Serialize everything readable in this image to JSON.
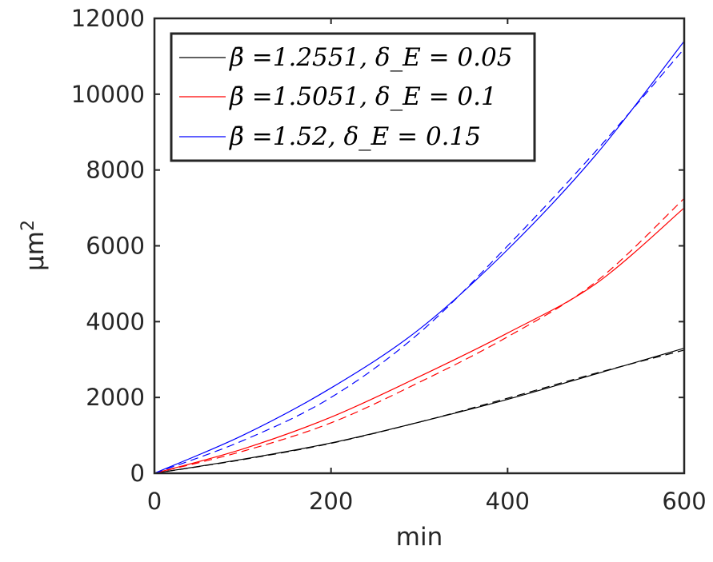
{
  "chart_data": {
    "type": "line",
    "xlabel": "min",
    "ylabel": "μm",
    "ylabel_superscript": "2",
    "xlim": [
      0,
      600
    ],
    "ylim": [
      0,
      12000
    ],
    "xticks": [
      0,
      200,
      400,
      600
    ],
    "xtick_labels": [
      "0",
      "200",
      "400",
      "600"
    ],
    "yticks": [
      0,
      2000,
      4000,
      6000,
      8000,
      10000,
      12000
    ],
    "ytick_labels": [
      "0",
      "2000",
      "4000",
      "6000",
      "8000",
      "10000",
      "12000"
    ],
    "grid": false,
    "legend_position": "top-left",
    "x": [
      0,
      100,
      200,
      300,
      400,
      500,
      600
    ],
    "series": [
      {
        "name": "β̄ =1.2551, δ_E = 0.05",
        "style": "solid",
        "color": "#000000",
        "values": [
          0,
          370,
          800,
          1350,
          1950,
          2620,
          3300
        ]
      },
      {
        "name": "",
        "style": "dashed",
        "color": "#000000",
        "values": [
          0,
          360,
          790,
          1350,
          1980,
          2640,
          3250
        ]
      },
      {
        "name": "β̄ =1.5051, δ_E = 0.1",
        "style": "solid",
        "color": "#ff0000",
        "values": [
          0,
          640,
          1480,
          2550,
          3700,
          5000,
          7000
        ]
      },
      {
        "name": "",
        "style": "dashed",
        "color": "#ff0000",
        "values": [
          0,
          580,
          1330,
          2400,
          3600,
          5050,
          7250
        ]
      },
      {
        "name": "β̄ =1.52, δ_E = 0.15",
        "style": "solid",
        "color": "#0000ff",
        "values": [
          0,
          1000,
          2250,
          3800,
          5900,
          8400,
          11400
        ]
      },
      {
        "name": "",
        "style": "dashed",
        "color": "#0000ff",
        "values": [
          0,
          860,
          2000,
          3700,
          6000,
          8500,
          11200
        ]
      }
    ]
  }
}
